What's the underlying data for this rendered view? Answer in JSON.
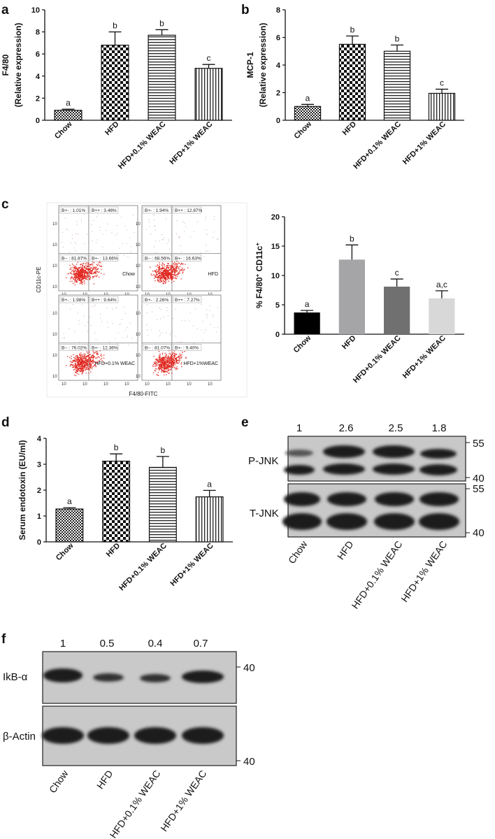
{
  "panel_labels": {
    "a": "a",
    "b": "b",
    "c": "c",
    "d": "d",
    "e": "e",
    "f": "f"
  },
  "chart_data": [
    {
      "id": "a",
      "type": "bar",
      "title": "",
      "ylabel_line1": "F4/80",
      "ylabel_line2": "(Relative expression)",
      "categories": [
        "Chow",
        "HFD",
        "HFD+0.1% WEAC",
        "HFD+1% WEAC"
      ],
      "values": [
        0.9,
        6.8,
        7.7,
        4.7
      ],
      "errors": [
        0.1,
        1.2,
        0.5,
        0.35
      ],
      "significance": [
        "a",
        "b",
        "b",
        "c"
      ],
      "ylim": [
        0,
        10
      ],
      "yticks": [
        "0",
        "2",
        "4",
        "6",
        "8",
        "10"
      ],
      "patterns": [
        "dense-check",
        "check",
        "hlines",
        "vlines"
      ]
    },
    {
      "id": "b",
      "type": "bar",
      "title": "",
      "ylabel_line1": "MCP-1",
      "ylabel_line2": "(Relative expression)",
      "categories": [
        "Chow",
        "HFD",
        "HFD+0.1% WEAC",
        "HFD+1% WEAC"
      ],
      "values": [
        1.0,
        5.5,
        5.0,
        1.95
      ],
      "errors": [
        0.15,
        0.6,
        0.45,
        0.3
      ],
      "significance": [
        "a",
        "b",
        "b",
        "c"
      ],
      "ylim": [
        0,
        8
      ],
      "yticks": [
        "0",
        "2",
        "4",
        "6",
        "8"
      ],
      "patterns": [
        "dense-check",
        "check",
        "hlines",
        "vlines"
      ]
    },
    {
      "id": "c",
      "type": "bar",
      "title": "",
      "ylabel": "% F4/80",
      "ylabel_sup1": "+",
      "ylabel_mid": " CD11c",
      "ylabel_sup2": "+",
      "categories": [
        "Chow",
        "HFD",
        "HFD+0.1% WEAC",
        "HFD+1% WEAC"
      ],
      "values": [
        3.7,
        12.7,
        8.1,
        6.1
      ],
      "errors": [
        0.35,
        2.5,
        1.3,
        1.3
      ],
      "significance": [
        "a",
        "b",
        "c",
        "a,c"
      ],
      "ylim": [
        0,
        20
      ],
      "yticks": [
        "0",
        "5",
        "10",
        "15",
        "20"
      ],
      "colors": [
        "#000000",
        "#a5a5a8",
        "#707070",
        "#d8d8d8"
      ]
    },
    {
      "id": "d",
      "type": "bar",
      "title": "",
      "ylabel": "Serum endotoxin (EU/ml)",
      "categories": [
        "Chow",
        "HFD",
        "HFD+0.1% WEAC",
        "HFD+1% WEAC"
      ],
      "values": [
        1.27,
        3.12,
        2.88,
        1.74
      ],
      "errors": [
        0.05,
        0.28,
        0.42,
        0.25
      ],
      "significance": [
        "a",
        "b",
        "b",
        "a"
      ],
      "ylim": [
        0,
        4
      ],
      "yticks": [
        "0",
        "1",
        "2",
        "3",
        "4"
      ],
      "patterns": [
        "dense-check",
        "check",
        "hlines",
        "vlines"
      ]
    }
  ],
  "flow_cytometry": {
    "xlabel": "F4/80-FITC",
    "ylabel": "CD11c-PE",
    "quadrants": [
      {
        "name": "Chow",
        "ul": "B+- : 1.01%",
        "ur": "B++ : 3.46%",
        "ll": "B-- : 81.87%",
        "lr": "B+- : 13.66%"
      },
      {
        "name": "HFD",
        "ul": "B+- : 1.94%",
        "ur": "B++ : 12.87%",
        "ll": "B-- : 68.56%",
        "lr": "B+- : 16.63%"
      },
      {
        "name": "HFD+0.1% WEAC",
        "ul": "B+- : 1.98%",
        "ur": "B++ : 9.64%",
        "ll": "B-- : 76.02%",
        "lr": "B+- : 12.36%"
      },
      {
        "name": "HFD+1%WEAC",
        "ul": "B+- : 2.26%",
        "ur": "B++ : 7.27%",
        "ll": "B-- : 81.07%",
        "lr": "B+- : 9.40%"
      }
    ],
    "axis_tick": "10"
  },
  "western_e": {
    "quant": [
      "1",
      "2.6",
      "2.5",
      "1.8"
    ],
    "rows": [
      "P-JNK",
      "T-JNK"
    ],
    "markers_top": [
      "55",
      "40"
    ],
    "markers_bottom": [
      "55",
      "40"
    ],
    "lanes": [
      "Chow",
      "HFD",
      "HFD+0.1% WEAC",
      "HFD+1% WEAC"
    ]
  },
  "western_f": {
    "quant": [
      "1",
      "0.5",
      "0.4",
      "0.7"
    ],
    "rows": [
      "IkB-α",
      "β-Actin"
    ],
    "markers_top": [
      "40"
    ],
    "markers_bottom": [
      "40"
    ],
    "lanes": [
      "Chow",
      "HFD",
      "HFD+0.1% WEAC",
      "HFD+1% WEAC"
    ]
  }
}
